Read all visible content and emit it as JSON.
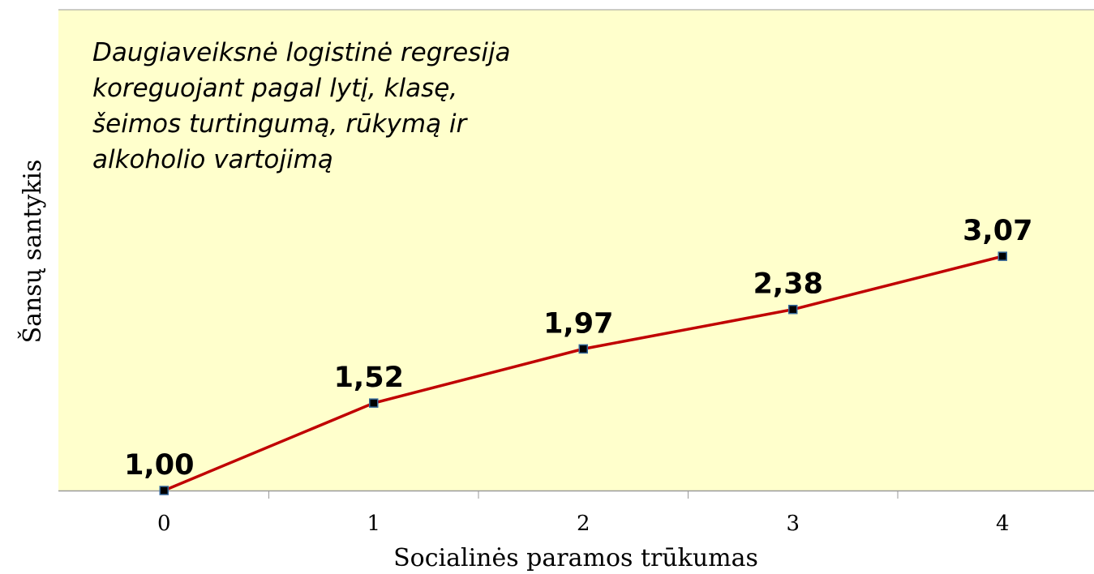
{
  "chart_data": {
    "type": "line",
    "annotation": [
      "Daugiaveiksnė logistinė regresija",
      "koreguojant pagal lytį, klasę,",
      "šeimos turtingumą, rūkymą ir",
      "alkoholio vartojimą"
    ],
    "xlabel": "Socialinės paramos trūkumas",
    "ylabel": "Šansų santykis",
    "categories": [
      "0",
      "1",
      "2",
      "3",
      "4"
    ],
    "values": [
      1.0,
      1.52,
      1.97,
      2.38,
      3.07
    ],
    "value_labels": [
      "1,00",
      "1,52",
      "1,97",
      "2,38",
      "3,07"
    ],
    "color": "#c00000",
    "ylim": [
      1,
      10
    ],
    "log_y": true,
    "background": "#ffffcc"
  }
}
